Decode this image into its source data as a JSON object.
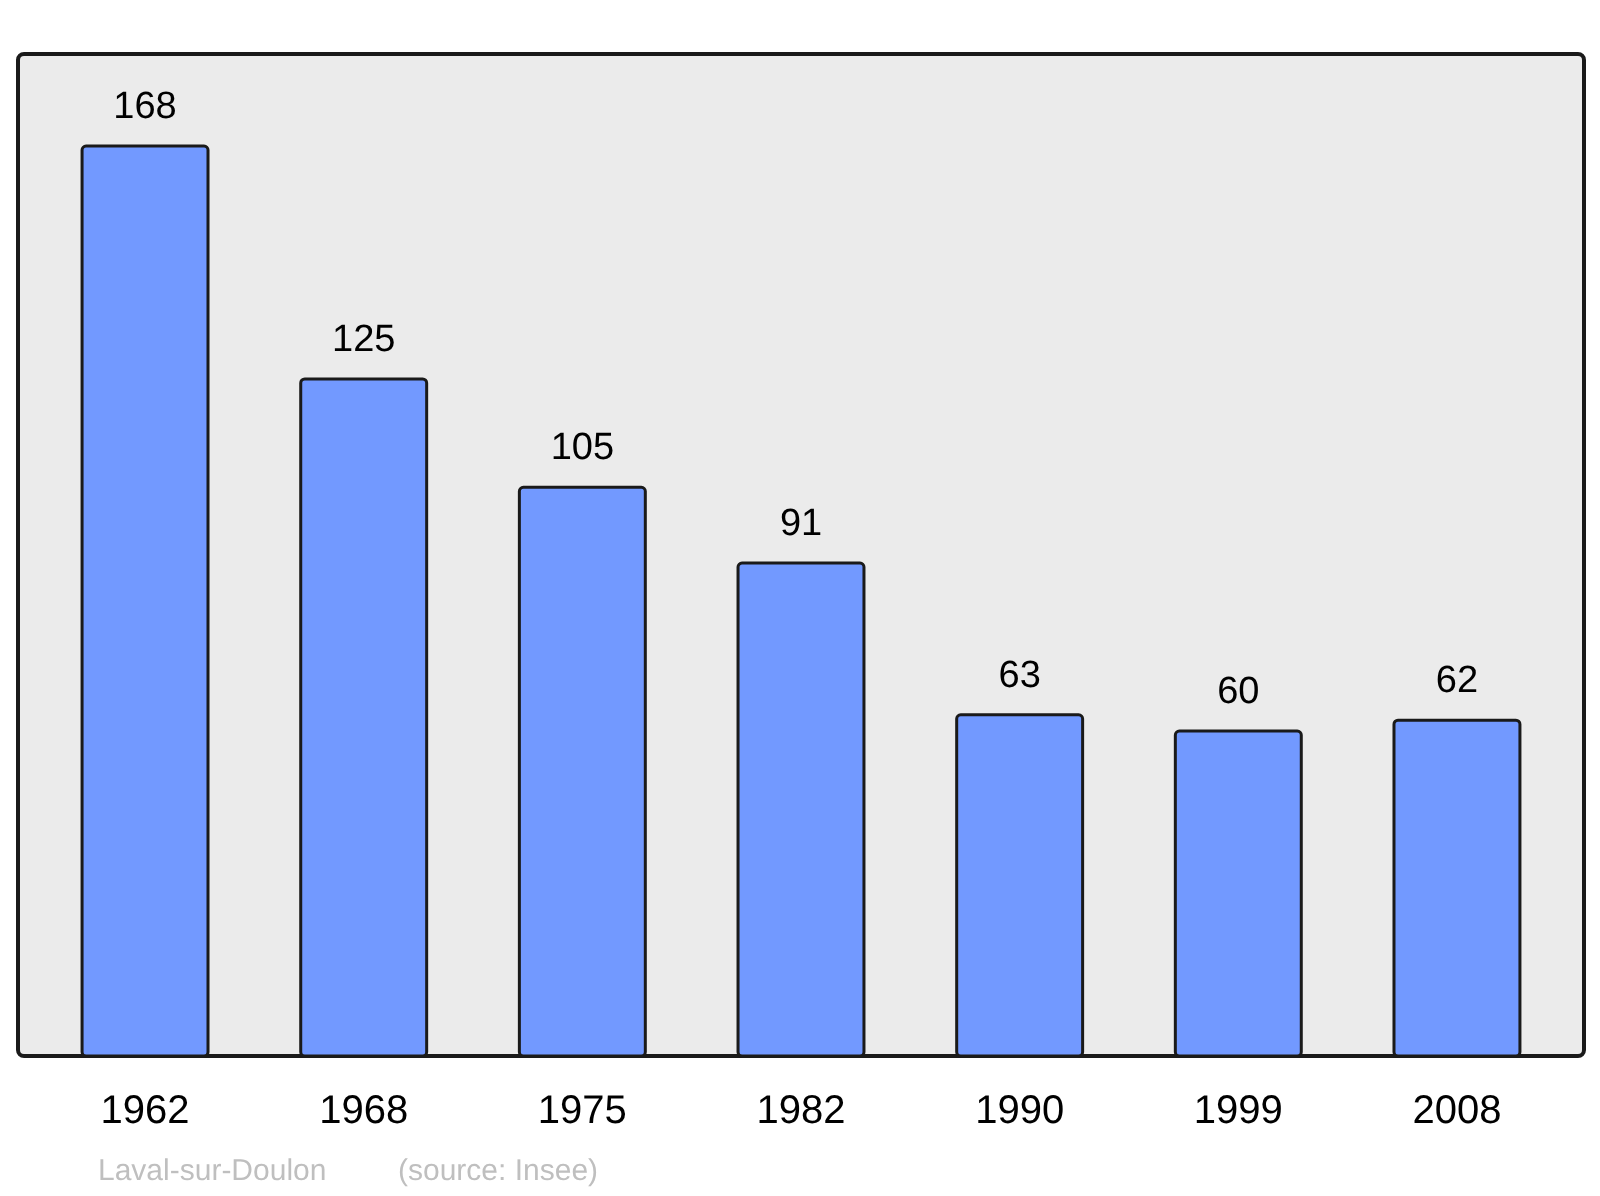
{
  "chart_data": {
    "type": "bar",
    "categories": [
      "1962",
      "1968",
      "1975",
      "1982",
      "1990",
      "1999",
      "2008"
    ],
    "values": [
      168,
      125,
      105,
      91,
      63,
      60,
      62
    ],
    "color": "#7299ff",
    "ylim": [
      0,
      185
    ],
    "data_labels": true,
    "tick_labels": "x",
    "annotations": [
      "Laval-sur-Doulon",
      "(source: Insee)"
    ]
  }
}
